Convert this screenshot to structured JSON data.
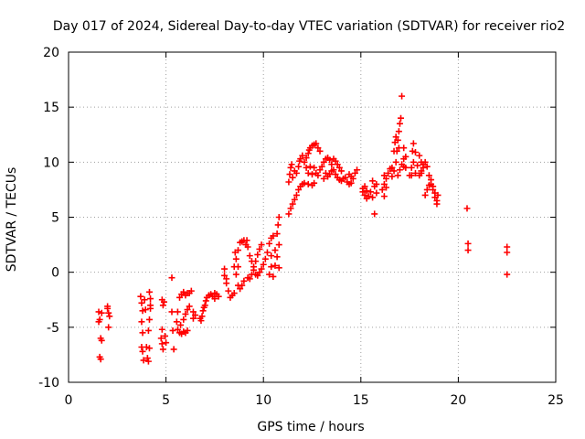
{
  "chart_data": {
    "type": "scatter",
    "title": "Day 017 of 2024, Sidereal Day-to-day VTEC variation (SDTVAR) for receiver rio2",
    "xlabel": "GPS time / hours",
    "ylabel": "SDTVAR / TECUs",
    "xlim": [
      0,
      25
    ],
    "ylim": [
      -10,
      20
    ],
    "xticks": [
      "0",
      "5",
      "10",
      "15",
      "20",
      "25"
    ],
    "yticks": [
      "-10",
      "-5",
      "0",
      "5",
      "10",
      "15",
      "20"
    ],
    "grid": true,
    "marker": "+",
    "color": "#ff0000",
    "series": [
      {
        "name": "SDTVAR",
        "points": [
          [
            1.55,
            -3.6
          ],
          [
            1.6,
            -4.3
          ],
          [
            1.65,
            -6.0
          ],
          [
            1.7,
            -6.2
          ],
          [
            1.6,
            -7.7
          ],
          [
            1.65,
            -7.9
          ],
          [
            1.7,
            -3.7
          ],
          [
            1.55,
            -4.5
          ],
          [
            2.0,
            -3.3
          ],
          [
            2.05,
            -3.7
          ],
          [
            2.1,
            -4.0
          ],
          [
            2.05,
            -5.0
          ],
          [
            2.0,
            -3.1
          ],
          [
            3.7,
            -2.2
          ],
          [
            3.75,
            -2.8
          ],
          [
            3.8,
            -3.5
          ],
          [
            3.75,
            -4.5
          ],
          [
            3.8,
            -5.5
          ],
          [
            3.75,
            -6.8
          ],
          [
            3.8,
            -7.2
          ],
          [
            3.85,
            -8.0
          ],
          [
            3.9,
            -2.5
          ],
          [
            3.95,
            -3.4
          ],
          [
            4.0,
            -6.8
          ],
          [
            4.05,
            -7.8
          ],
          [
            4.1,
            -8.1
          ],
          [
            4.15,
            -6.9
          ],
          [
            4.15,
            -1.8
          ],
          [
            4.2,
            -2.4
          ],
          [
            4.2,
            -3.3
          ],
          [
            4.15,
            -4.3
          ],
          [
            4.1,
            -5.3
          ],
          [
            4.2,
            -3.0
          ],
          [
            4.8,
            -2.5
          ],
          [
            4.85,
            -3.0
          ],
          [
            4.9,
            -2.7
          ],
          [
            4.75,
            -6.0
          ],
          [
            4.8,
            -6.5
          ],
          [
            4.85,
            -7.0
          ],
          [
            4.95,
            -5.8
          ],
          [
            5.0,
            -6.4
          ],
          [
            4.8,
            -5.2
          ],
          [
            5.3,
            -0.5
          ],
          [
            5.3,
            -3.6
          ],
          [
            5.35,
            -5.3
          ],
          [
            5.4,
            -7.0
          ],
          [
            5.7,
            -2.3
          ],
          [
            5.8,
            -2.0
          ],
          [
            5.9,
            -1.8
          ],
          [
            6.0,
            -2.1
          ],
          [
            6.1,
            -1.9
          ],
          [
            6.2,
            -1.9
          ],
          [
            5.6,
            -3.6
          ],
          [
            5.55,
            -4.5
          ],
          [
            5.6,
            -5.2
          ],
          [
            5.7,
            -5.5
          ],
          [
            5.8,
            -5.6
          ],
          [
            5.9,
            -5.4
          ],
          [
            6.0,
            -5.5
          ],
          [
            6.1,
            -5.3
          ],
          [
            5.75,
            -4.8
          ],
          [
            5.9,
            -4.3
          ],
          [
            6.0,
            -3.8
          ],
          [
            6.1,
            -3.4
          ],
          [
            6.2,
            -3.1
          ],
          [
            6.4,
            -3.6
          ],
          [
            6.4,
            -4.2
          ],
          [
            6.5,
            -3.9
          ],
          [
            6.3,
            -1.7
          ],
          [
            6.75,
            -4.2
          ],
          [
            6.8,
            -4.4
          ],
          [
            6.85,
            -4.0
          ],
          [
            6.9,
            -3.5
          ],
          [
            7.0,
            -3.0
          ],
          [
            7.05,
            -2.6
          ],
          [
            7.1,
            -2.3
          ],
          [
            7.2,
            -2.1
          ],
          [
            6.95,
            -3.2
          ],
          [
            7.3,
            -2.0
          ],
          [
            7.4,
            -2.2
          ],
          [
            7.5,
            -2.4
          ],
          [
            7.6,
            -2.0
          ],
          [
            7.7,
            -2.2
          ],
          [
            7.5,
            -1.9
          ],
          [
            8.0,
            -0.3
          ],
          [
            8.1,
            -1.0
          ],
          [
            8.2,
            -1.7
          ],
          [
            8.3,
            -2.3
          ],
          [
            8.4,
            -2.1
          ],
          [
            8.5,
            -1.9
          ],
          [
            8.0,
            0.3
          ],
          [
            8.1,
            -0.6
          ],
          [
            8.5,
            0.5
          ],
          [
            8.6,
            1.2
          ],
          [
            8.7,
            2.0
          ],
          [
            8.8,
            2.7
          ],
          [
            8.9,
            2.8
          ],
          [
            9.0,
            2.9
          ],
          [
            8.6,
            -0.2
          ],
          [
            8.7,
            -1.2
          ],
          [
            8.8,
            -1.5
          ],
          [
            8.9,
            -1.2
          ],
          [
            9.0,
            -0.8
          ],
          [
            8.55,
            1.8
          ],
          [
            8.7,
            0.5
          ],
          [
            9.1,
            2.5
          ],
          [
            9.2,
            2.3
          ],
          [
            9.3,
            1.5
          ],
          [
            9.4,
            1.0
          ],
          [
            9.5,
            0.2
          ],
          [
            9.6,
            -0.2
          ],
          [
            9.2,
            -0.5
          ],
          [
            9.3,
            -0.6
          ],
          [
            9.4,
            -0.2
          ],
          [
            9.5,
            0.5
          ],
          [
            9.6,
            1.0
          ],
          [
            9.7,
            1.6
          ],
          [
            9.8,
            2.1
          ],
          [
            9.9,
            2.5
          ],
          [
            9.15,
            2.9
          ],
          [
            9.7,
            -0.3
          ],
          [
            9.8,
            0.0
          ],
          [
            9.9,
            0.3
          ],
          [
            10.0,
            0.7
          ],
          [
            10.1,
            1.2
          ],
          [
            10.2,
            1.8
          ],
          [
            10.3,
            2.6
          ],
          [
            10.4,
            3.1
          ],
          [
            10.3,
            -0.2
          ],
          [
            10.4,
            0.5
          ],
          [
            10.5,
            -0.4
          ],
          [
            10.6,
            0.6
          ],
          [
            10.7,
            1.4
          ],
          [
            10.8,
            2.5
          ],
          [
            10.7,
            3.5
          ],
          [
            10.75,
            4.3
          ],
          [
            10.8,
            5.0
          ],
          [
            10.5,
            3.3
          ],
          [
            10.6,
            2.0
          ],
          [
            10.4,
            1.5
          ],
          [
            10.8,
            0.4
          ],
          [
            11.3,
            5.3
          ],
          [
            11.4,
            5.8
          ],
          [
            11.5,
            6.2
          ],
          [
            11.6,
            6.6
          ],
          [
            11.7,
            7.0
          ],
          [
            11.8,
            7.5
          ],
          [
            11.9,
            7.8
          ],
          [
            12.0,
            8.0
          ],
          [
            12.1,
            8.1
          ],
          [
            12.3,
            8.0
          ],
          [
            12.5,
            7.9
          ],
          [
            12.6,
            8.1
          ],
          [
            11.3,
            8.2
          ],
          [
            11.35,
            8.9
          ],
          [
            11.4,
            9.5
          ],
          [
            11.45,
            9.8
          ],
          [
            11.5,
            8.6
          ],
          [
            11.6,
            9.2
          ],
          [
            11.7,
            9.0
          ],
          [
            11.8,
            9.6
          ],
          [
            11.85,
            10.1
          ],
          [
            11.9,
            10.3
          ],
          [
            12.0,
            10.6
          ],
          [
            12.1,
            10.0
          ],
          [
            12.2,
            10.4
          ],
          [
            12.3,
            10.8
          ],
          [
            12.35,
            11.1
          ],
          [
            12.4,
            11.3
          ],
          [
            12.5,
            11.5
          ],
          [
            12.6,
            11.6
          ],
          [
            12.7,
            11.7
          ],
          [
            12.8,
            11.3
          ],
          [
            12.9,
            11.0
          ],
          [
            12.2,
            9.5
          ],
          [
            12.3,
            9.0
          ],
          [
            12.6,
            9.5
          ],
          [
            12.7,
            9.0
          ],
          [
            12.8,
            8.8
          ],
          [
            12.9,
            9.3
          ],
          [
            13.0,
            9.6
          ],
          [
            13.1,
            10.0
          ],
          [
            13.2,
            10.3
          ],
          [
            13.3,
            10.4
          ],
          [
            13.4,
            10.2
          ],
          [
            13.5,
            9.8
          ],
          [
            13.6,
            9.3
          ],
          [
            13.7,
            8.9
          ],
          [
            13.8,
            8.6
          ],
          [
            13.9,
            8.4
          ],
          [
            14.0,
            8.3
          ],
          [
            14.1,
            8.5
          ],
          [
            14.2,
            8.6
          ],
          [
            14.3,
            8.2
          ],
          [
            14.4,
            8.0
          ],
          [
            14.5,
            8.1
          ],
          [
            14.6,
            8.5
          ],
          [
            14.7,
            9.0
          ],
          [
            14.8,
            9.3
          ],
          [
            13.2,
            9.0
          ],
          [
            13.3,
            8.7
          ],
          [
            13.4,
            8.9
          ],
          [
            13.5,
            9.2
          ],
          [
            13.6,
            10.3
          ],
          [
            13.7,
            10.1
          ],
          [
            13.8,
            9.8
          ],
          [
            13.9,
            9.5
          ],
          [
            14.0,
            9.2
          ],
          [
            13.1,
            8.5
          ],
          [
            12.5,
            8.9
          ],
          [
            12.4,
            9.6
          ],
          [
            14.4,
            8.9
          ],
          [
            14.5,
            8.7
          ],
          [
            15.1,
            7.3
          ],
          [
            15.2,
            7.0
          ],
          [
            15.3,
            6.7
          ],
          [
            15.4,
            6.9
          ],
          [
            15.5,
            7.3
          ],
          [
            15.1,
            7.6
          ],
          [
            15.2,
            7.8
          ],
          [
            15.3,
            7.4
          ],
          [
            15.6,
            6.8
          ],
          [
            15.7,
            5.3
          ],
          [
            15.7,
            7.8
          ],
          [
            15.8,
            8.0
          ],
          [
            15.6,
            8.3
          ],
          [
            15.8,
            7.2
          ],
          [
            16.1,
            7.5
          ],
          [
            16.2,
            8.0
          ],
          [
            16.3,
            8.5
          ],
          [
            16.4,
            9.0
          ],
          [
            16.5,
            9.4
          ],
          [
            16.2,
            8.8
          ],
          [
            16.3,
            7.7
          ],
          [
            16.2,
            6.9
          ],
          [
            16.6,
            8.7
          ],
          [
            16.7,
            9.2
          ],
          [
            16.8,
            10.0
          ],
          [
            16.85,
            11.0
          ],
          [
            16.9,
            12.0
          ],
          [
            16.95,
            12.8
          ],
          [
            17.0,
            13.5
          ],
          [
            17.05,
            14.0
          ],
          [
            16.7,
            11.0
          ],
          [
            16.75,
            11.8
          ],
          [
            16.8,
            12.3
          ],
          [
            16.6,
            9.5
          ],
          [
            16.9,
            8.8
          ],
          [
            17.0,
            9.3
          ],
          [
            17.1,
            9.8
          ],
          [
            17.2,
            10.3
          ],
          [
            17.1,
            16.0
          ],
          [
            16.95,
            11.3
          ],
          [
            17.2,
            9.6
          ],
          [
            17.3,
            10.5
          ],
          [
            17.2,
            11.3
          ],
          [
            17.3,
            9.5
          ],
          [
            17.5,
            8.8
          ],
          [
            17.6,
            9.5
          ],
          [
            17.7,
            10.0
          ],
          [
            17.65,
            11.0
          ],
          [
            17.7,
            11.7
          ],
          [
            17.8,
            10.9
          ],
          [
            17.9,
            9.7
          ],
          [
            17.8,
            9.0
          ],
          [
            17.6,
            8.8
          ],
          [
            18.0,
            8.8
          ],
          [
            18.1,
            9.0
          ],
          [
            18.2,
            9.5
          ],
          [
            18.3,
            10.0
          ],
          [
            18.4,
            9.6
          ],
          [
            18.5,
            8.8
          ],
          [
            18.6,
            8.4
          ],
          [
            18.7,
            7.8
          ],
          [
            18.8,
            7.2
          ],
          [
            18.9,
            6.5
          ],
          [
            18.3,
            7.0
          ],
          [
            18.4,
            7.5
          ],
          [
            18.5,
            7.9
          ],
          [
            18.6,
            8.0
          ],
          [
            18.7,
            7.5
          ],
          [
            18.8,
            6.8
          ],
          [
            18.9,
            6.2
          ],
          [
            18.1,
            9.2
          ],
          [
            18.2,
            9.8
          ],
          [
            18.0,
            10.6
          ],
          [
            18.1,
            10.0
          ],
          [
            18.95,
            7.0
          ],
          [
            20.45,
            5.8
          ],
          [
            20.5,
            2.6
          ],
          [
            20.5,
            2.0
          ],
          [
            22.5,
            2.3
          ],
          [
            22.5,
            1.8
          ],
          [
            22.5,
            -0.2
          ]
        ]
      }
    ]
  }
}
